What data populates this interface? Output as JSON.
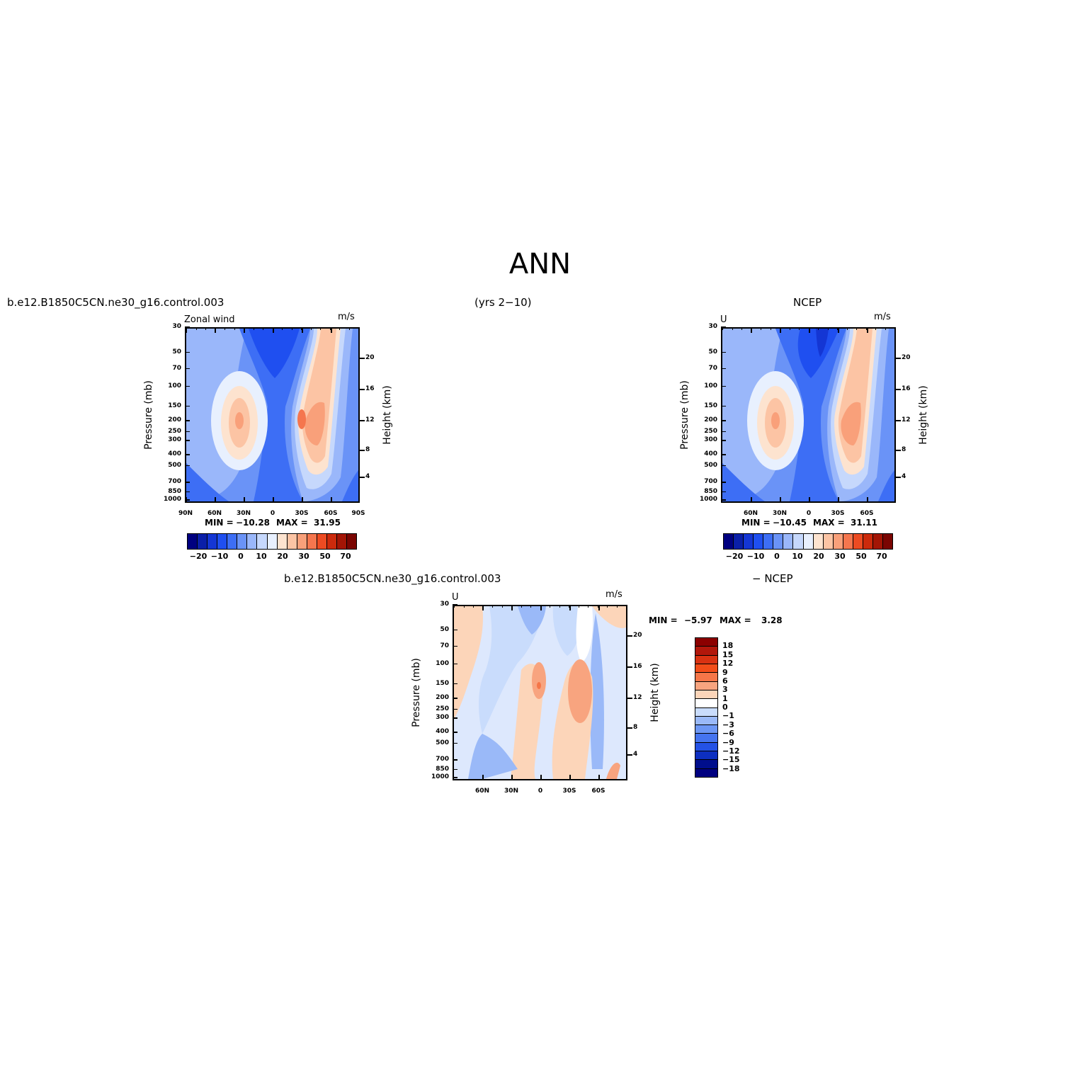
{
  "page": {
    "title": "ANN",
    "case_name_top": "b.e12.B1850C5CN.ne30_g16.control.003",
    "years": "(yrs 2−10)",
    "obs_name": "NCEP",
    "case_name_diff": "b.e12.B1850C5CN.ne30_g16.control.003",
    "diff_suffix": "− NCEP"
  },
  "chart_data": [
    {
      "type": "heatmap",
      "id": "model",
      "variable_label": "Zonal wind",
      "units": "m/s",
      "ylabel": "Pressure (mb)",
      "y2label": "Height (km)",
      "x_ticks": [
        "90N",
        "60N",
        "30N",
        "0",
        "30S",
        "60S",
        "90S"
      ],
      "y_ticks": [
        "30",
        "50",
        "70",
        "100",
        "150",
        "200",
        "250",
        "300",
        "400",
        "500",
        "700",
        "850",
        "1000"
      ],
      "y2_ticks": [
        "20",
        "16",
        "12",
        "8",
        "4"
      ],
      "min_label": "MIN =",
      "min_value": "−10.28",
      "max_label": "MAX =",
      "max_value": "31.95",
      "colorbar_ticks": [
        "−20",
        "−10",
        "0",
        "10",
        "20",
        "30",
        "50",
        "70"
      ]
    },
    {
      "type": "heatmap",
      "id": "obs",
      "variable_label": "U",
      "units": "m/s",
      "ylabel": "Pressure (mb)",
      "y2label": "Height (km)",
      "x_ticks": [
        "60N",
        "30N",
        "0",
        "30S",
        "60S"
      ],
      "y_ticks": [
        "30",
        "50",
        "70",
        "100",
        "150",
        "200",
        "250",
        "300",
        "400",
        "500",
        "700",
        "850",
        "1000"
      ],
      "y2_ticks": [
        "20",
        "16",
        "12",
        "8",
        "4"
      ],
      "min_label": "MIN =",
      "min_value": "−10.45",
      "max_label": "MAX =",
      "max_value": "31.11",
      "colorbar_ticks": [
        "−20",
        "−10",
        "0",
        "10",
        "20",
        "30",
        "50",
        "70"
      ]
    },
    {
      "type": "heatmap",
      "id": "diff",
      "variable_label": "U",
      "units": "m/s",
      "ylabel": "Pressure (mb)",
      "y2label": "Height (km)",
      "x_ticks": [
        "60N",
        "30N",
        "0",
        "30S",
        "60S"
      ],
      "y_ticks": [
        "30",
        "50",
        "70",
        "100",
        "150",
        "200",
        "250",
        "300",
        "400",
        "500",
        "700",
        "850",
        "1000"
      ],
      "y2_ticks": [
        "20",
        "16",
        "12",
        "8",
        "4"
      ],
      "min_label": "MIN =",
      "min_value": "−5.97",
      "max_label": "MAX =",
      "max_value": "3.28",
      "colorbar_ticks": [
        "18",
        "15",
        "12",
        "9",
        "6",
        "3",
        "1",
        "0",
        "−1",
        "−3",
        "−6",
        "−9",
        "−12",
        "−15",
        "−18"
      ]
    }
  ],
  "palette": {
    "main": [
      "#000080",
      "#0a1fa8",
      "#1436d4",
      "#1f4ff0",
      "#3d6ef5",
      "#6a93f7",
      "#9ab7fa",
      "#c6d8fc",
      "#e8f0fe",
      "#fde3cf",
      "#fcc4a4",
      "#f9a07a",
      "#f5764e",
      "#ed4b22",
      "#cc2a0c",
      "#a31505",
      "#7a0502"
    ],
    "diff": [
      "#8b0000",
      "#b2170b",
      "#d93212",
      "#f24d19",
      "#f57648",
      "#f8a47f",
      "#fcd5b9",
      "#ffffff",
      "#c9dcfc",
      "#9ab9f8",
      "#6d97f4",
      "#4574ef",
      "#2452e6",
      "#0d2fc0",
      "#000e8c"
    ]
  }
}
